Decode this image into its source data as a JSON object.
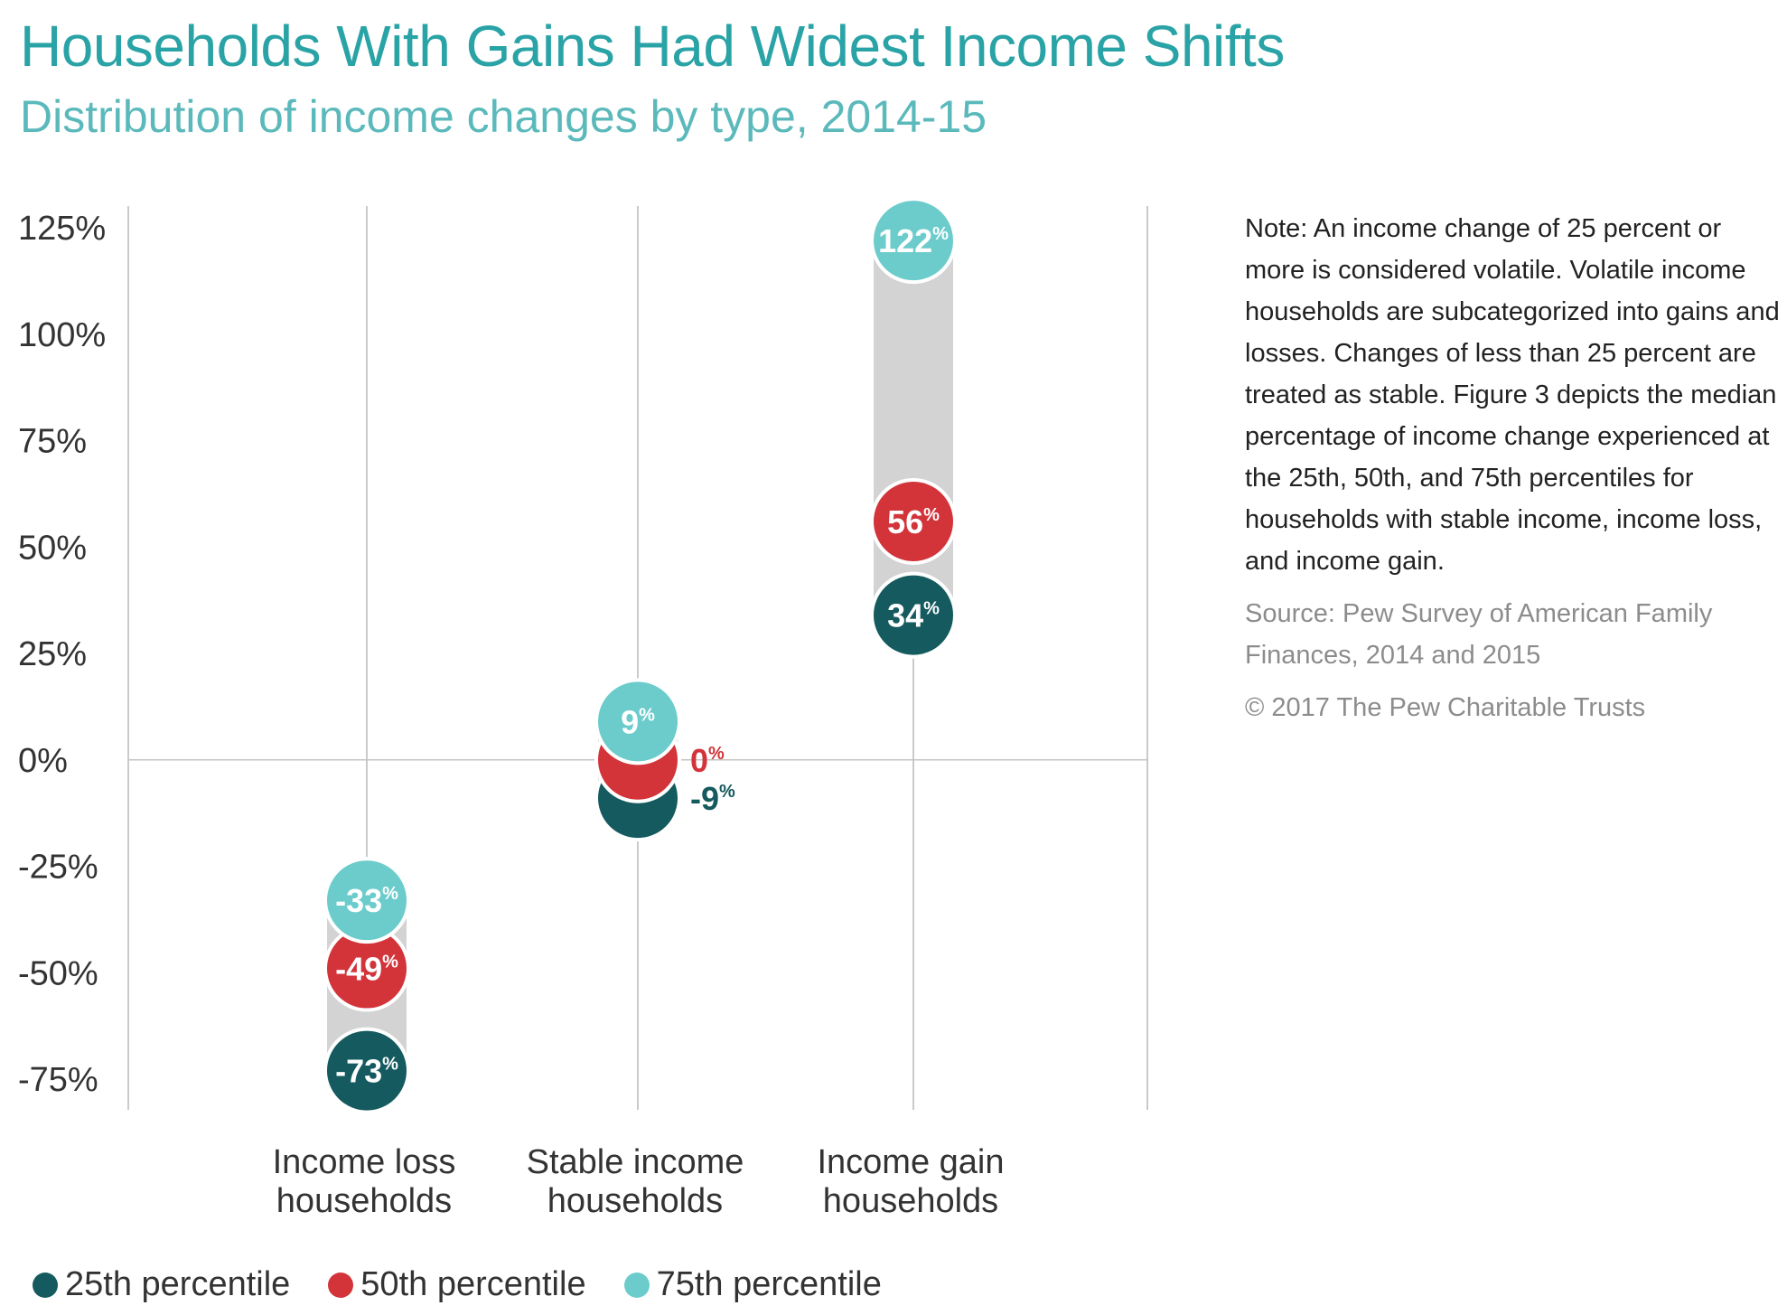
{
  "header": {
    "title": "Households With Gains Had Widest Income Shifts",
    "subtitle": "Distribution of income changes by type, 2014-15"
  },
  "colors": {
    "p25": "#145a5e",
    "p50": "#d2343a",
    "p75": "#6ccccc",
    "range_band": "#d3d3d3",
    "title": "#2aa3a6"
  },
  "chart_data": {
    "type": "scatter",
    "title": "Households With Gains Had Widest Income Shifts",
    "subtitle": "Distribution of income changes by type, 2014-15",
    "ylim": [
      -85,
      135
    ],
    "yticks": [
      125,
      100,
      75,
      50,
      25,
      0,
      -25,
      -50,
      -75
    ],
    "ytick_labels": [
      "125%",
      "100%",
      "75%",
      "50%",
      "25%",
      "0%",
      "-25%",
      "-50%",
      "-75%"
    ],
    "categories": [
      {
        "line1": "Income loss",
        "line2": "households"
      },
      {
        "line1": "Stable income",
        "line2": "households"
      },
      {
        "line1": "Income gain",
        "line2": "households"
      }
    ],
    "series": [
      {
        "name": "25th percentile",
        "key": "p25",
        "values": [
          -73,
          -9,
          34
        ],
        "labels": [
          "-73",
          "-9",
          "34"
        ]
      },
      {
        "name": "50th percentile",
        "key": "p50",
        "values": [
          -49,
          0,
          56
        ],
        "labels": [
          "-49",
          "0",
          "56"
        ]
      },
      {
        "name": "75th percentile",
        "key": "p75",
        "values": [
          -33,
          9,
          122
        ],
        "labels": [
          "-33",
          "9",
          "122"
        ]
      }
    ],
    "value_suffix": "%",
    "legend": "bottom-left",
    "grid": "vertical"
  },
  "note": {
    "text": "Note: An income change of 25 percent or more is considered volatile. Volatile income households are subcategorized into gains and losses. Changes of less than 25 percent are treated as stable. Figure 3 depicts the median percentage of income change experienced at the 25th, 50th, and 75th percentiles for households with stable income, income loss, and income gain.",
    "source": "Source: Pew Survey of American Family Finances, 2014 and 2015",
    "copyright": "© 2017 The Pew Charitable Trusts"
  },
  "legend": {
    "items": [
      {
        "label": "25th percentile",
        "color": "#145a5e"
      },
      {
        "label": "50th percentile",
        "color": "#d2343a"
      },
      {
        "label": "75th percentile",
        "color": "#6ccccc"
      }
    ]
  }
}
